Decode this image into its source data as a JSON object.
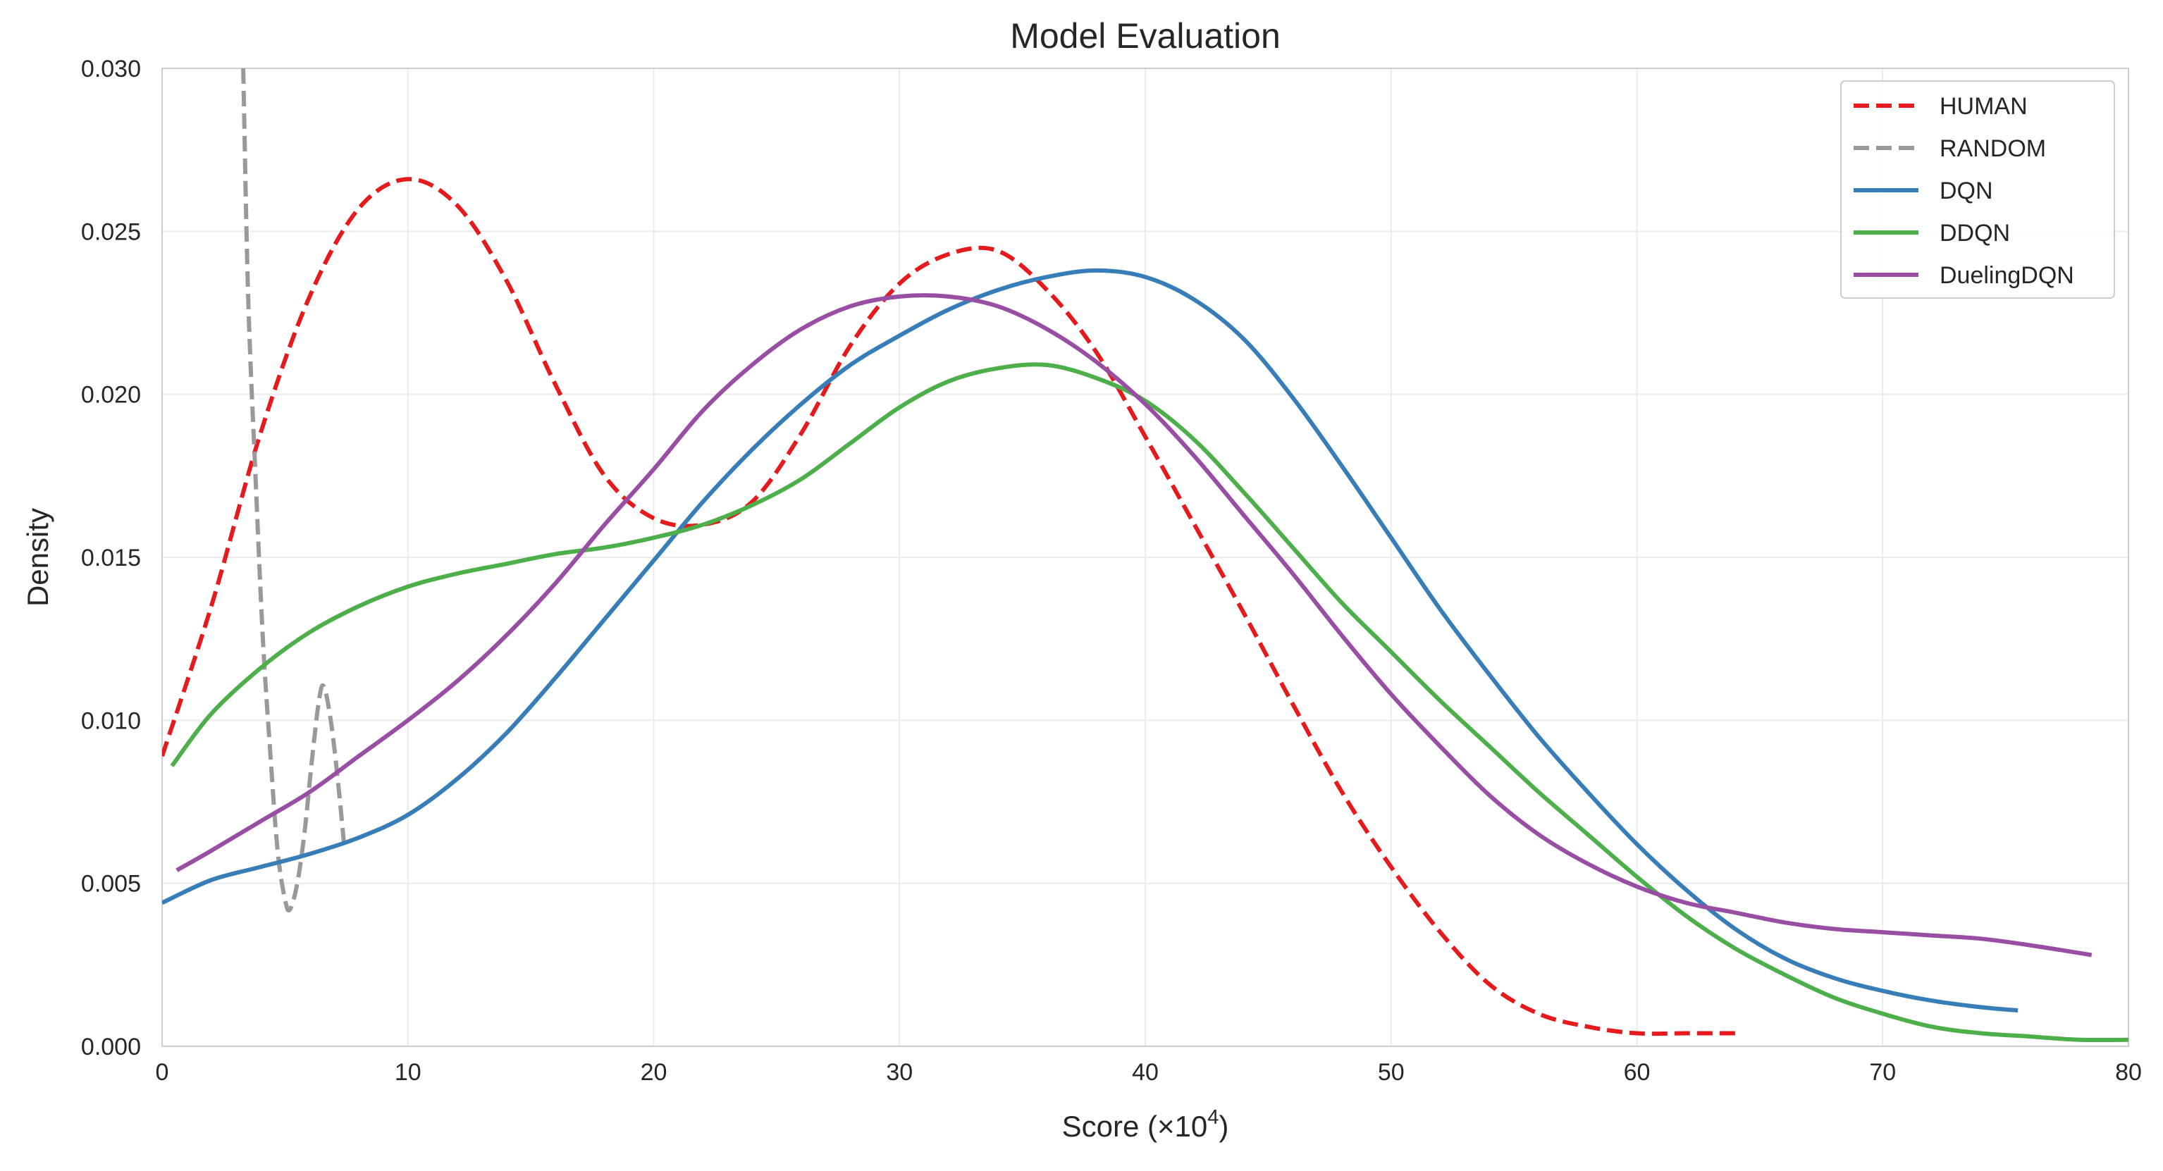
{
  "chart_data": {
    "type": "line",
    "title": "Model Evaluation",
    "xlabel": "Score (×10",
    "xlabel_sup": "4",
    "xlabel_close": ")",
    "ylabel": "Density",
    "xlim": [
      0,
      80
    ],
    "ylim": [
      0,
      0.03
    ],
    "x_ticks": [
      0,
      10,
      20,
      30,
      40,
      50,
      60,
      70,
      80
    ],
    "x_tick_labels": [
      "0",
      "10",
      "20",
      "30",
      "40",
      "50",
      "60",
      "70",
      "80"
    ],
    "y_ticks": [
      0,
      0.005,
      0.01,
      0.015,
      0.02,
      0.025,
      0.03
    ],
    "y_tick_labels": [
      "0.000",
      "0.005",
      "0.010",
      "0.015",
      "0.020",
      "0.025",
      "0.030"
    ],
    "grid": true,
    "legend_position": "top-right",
    "series": [
      {
        "name": "HUMAN",
        "color": "#e41a1c",
        "dash": true,
        "points": [
          [
            0,
            0.0089
          ],
          [
            2,
            0.0135
          ],
          [
            4,
            0.0188
          ],
          [
            6,
            0.023
          ],
          [
            8,
            0.0257
          ],
          [
            10,
            0.0266
          ],
          [
            12,
            0.0258
          ],
          [
            14,
            0.0235
          ],
          [
            16,
            0.0203
          ],
          [
            18,
            0.0175
          ],
          [
            20,
            0.0162
          ],
          [
            22,
            0.016
          ],
          [
            24,
            0.0167
          ],
          [
            26,
            0.0188
          ],
          [
            28,
            0.0215
          ],
          [
            30,
            0.0234
          ],
          [
            32,
            0.0243
          ],
          [
            34,
            0.0244
          ],
          [
            36,
            0.0232
          ],
          [
            38,
            0.0213
          ],
          [
            40,
            0.0187
          ],
          [
            42,
            0.016
          ],
          [
            44,
            0.0133
          ],
          [
            46,
            0.0105
          ],
          [
            48,
            0.0078
          ],
          [
            50,
            0.0055
          ],
          [
            52,
            0.0035
          ],
          [
            54,
            0.0019
          ],
          [
            56,
            0.001
          ],
          [
            58,
            0.0006
          ],
          [
            60,
            0.0004
          ],
          [
            62,
            0.0004
          ],
          [
            64,
            0.0004
          ]
        ]
      },
      {
        "name": "RANDOM",
        "color": "#999999",
        "dash": true,
        "points": [
          [
            3.3,
            0.03
          ],
          [
            3.5,
            0.023
          ],
          [
            3.8,
            0.0175
          ],
          [
            4.1,
            0.0125
          ],
          [
            4.4,
            0.009
          ],
          [
            4.7,
            0.006
          ],
          [
            5.0,
            0.0045
          ],
          [
            5.2,
            0.0042
          ],
          [
            5.5,
            0.005
          ],
          [
            5.8,
            0.0066
          ],
          [
            6.1,
            0.0088
          ],
          [
            6.4,
            0.0107
          ],
          [
            6.6,
            0.011
          ],
          [
            6.9,
            0.0098
          ],
          [
            7.2,
            0.0078
          ],
          [
            7.4,
            0.0062
          ]
        ]
      },
      {
        "name": "DQN",
        "color": "#377eb8",
        "dash": false,
        "points": [
          [
            0,
            0.0044
          ],
          [
            2,
            0.0051
          ],
          [
            4,
            0.0055
          ],
          [
            6,
            0.0059
          ],
          [
            8,
            0.0064
          ],
          [
            10,
            0.0071
          ],
          [
            12,
            0.0082
          ],
          [
            14,
            0.0096
          ],
          [
            16,
            0.0113
          ],
          [
            18,
            0.0131
          ],
          [
            20,
            0.0149
          ],
          [
            22,
            0.0167
          ],
          [
            24,
            0.0183
          ],
          [
            26,
            0.0197
          ],
          [
            28,
            0.0209
          ],
          [
            30,
            0.0218
          ],
          [
            32,
            0.0226
          ],
          [
            34,
            0.0232
          ],
          [
            36,
            0.0236
          ],
          [
            38,
            0.0238
          ],
          [
            40,
            0.0236
          ],
          [
            42,
            0.0229
          ],
          [
            44,
            0.0217
          ],
          [
            46,
            0.0199
          ],
          [
            48,
            0.0178
          ],
          [
            50,
            0.0156
          ],
          [
            52,
            0.0134
          ],
          [
            54,
            0.0114
          ],
          [
            56,
            0.0095
          ],
          [
            58,
            0.0078
          ],
          [
            60,
            0.0062
          ],
          [
            62,
            0.0048
          ],
          [
            64,
            0.0036
          ],
          [
            66,
            0.0027
          ],
          [
            68,
            0.0021
          ],
          [
            70,
            0.0017
          ],
          [
            72,
            0.0014
          ],
          [
            74,
            0.0012
          ],
          [
            75.5,
            0.0011
          ]
        ]
      },
      {
        "name": "DDQN",
        "color": "#4daf4a",
        "dash": false,
        "points": [
          [
            0.4,
            0.0086
          ],
          [
            2,
            0.0102
          ],
          [
            4,
            0.0116
          ],
          [
            6,
            0.0127
          ],
          [
            8,
            0.0135
          ],
          [
            10,
            0.0141
          ],
          [
            12,
            0.0145
          ],
          [
            14,
            0.0148
          ],
          [
            16,
            0.0151
          ],
          [
            18,
            0.0153
          ],
          [
            20,
            0.0156
          ],
          [
            22,
            0.016
          ],
          [
            24,
            0.0166
          ],
          [
            26,
            0.0174
          ],
          [
            28,
            0.0185
          ],
          [
            30,
            0.0196
          ],
          [
            32,
            0.0204
          ],
          [
            34,
            0.0208
          ],
          [
            36,
            0.0209
          ],
          [
            38,
            0.0205
          ],
          [
            40,
            0.0198
          ],
          [
            42,
            0.0186
          ],
          [
            44,
            0.017
          ],
          [
            46,
            0.0153
          ],
          [
            48,
            0.0136
          ],
          [
            50,
            0.0121
          ],
          [
            52,
            0.0106
          ],
          [
            54,
            0.0092
          ],
          [
            56,
            0.0078
          ],
          [
            58,
            0.0065
          ],
          [
            60,
            0.0052
          ],
          [
            62,
            0.004
          ],
          [
            64,
            0.003
          ],
          [
            66,
            0.0022
          ],
          [
            68,
            0.0015
          ],
          [
            70,
            0.001
          ],
          [
            72,
            0.0006
          ],
          [
            74,
            0.0004
          ],
          [
            76,
            0.0003
          ],
          [
            78,
            0.0002
          ],
          [
            80,
            0.0002
          ]
        ]
      },
      {
        "name": "DuelingDQN",
        "color": "#984ea3",
        "dash": false,
        "points": [
          [
            0.6,
            0.0054
          ],
          [
            2,
            0.006
          ],
          [
            4,
            0.0069
          ],
          [
            6,
            0.0078
          ],
          [
            8,
            0.0089
          ],
          [
            10,
            0.01
          ],
          [
            12,
            0.0112
          ],
          [
            14,
            0.0126
          ],
          [
            16,
            0.0142
          ],
          [
            18,
            0.016
          ],
          [
            20,
            0.0177
          ],
          [
            22,
            0.0195
          ],
          [
            24,
            0.0209
          ],
          [
            26,
            0.022
          ],
          [
            28,
            0.0227
          ],
          [
            30,
            0.023
          ],
          [
            32,
            0.023
          ],
          [
            34,
            0.0227
          ],
          [
            36,
            0.022
          ],
          [
            38,
            0.021
          ],
          [
            40,
            0.0197
          ],
          [
            42,
            0.0181
          ],
          [
            44,
            0.0163
          ],
          [
            46,
            0.0145
          ],
          [
            48,
            0.0126
          ],
          [
            50,
            0.0108
          ],
          [
            52,
            0.0092
          ],
          [
            54,
            0.0077
          ],
          [
            56,
            0.0065
          ],
          [
            58,
            0.0056
          ],
          [
            60,
            0.0049
          ],
          [
            62,
            0.0044
          ],
          [
            64,
            0.0041
          ],
          [
            66,
            0.0038
          ],
          [
            68,
            0.0036
          ],
          [
            70,
            0.0035
          ],
          [
            72,
            0.0034
          ],
          [
            74,
            0.0033
          ],
          [
            76,
            0.0031
          ],
          [
            78.5,
            0.0028
          ]
        ]
      }
    ]
  }
}
